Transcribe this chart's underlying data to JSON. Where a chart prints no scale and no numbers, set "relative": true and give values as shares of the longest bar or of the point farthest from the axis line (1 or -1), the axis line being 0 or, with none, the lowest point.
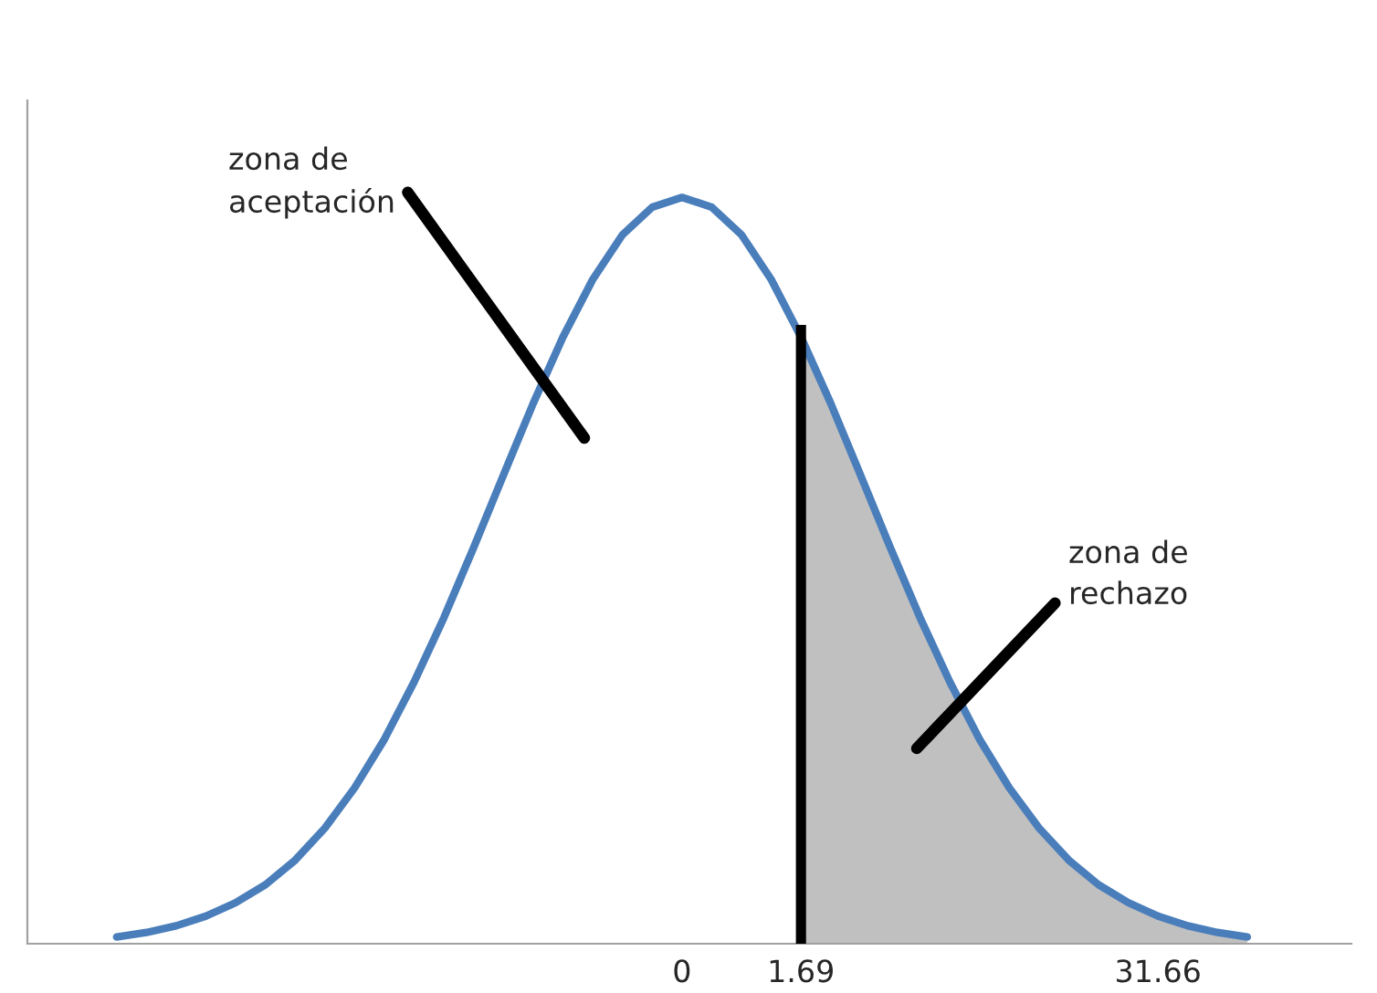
{
  "chart_data": {
    "type": "line",
    "relative": true,
    "grid": false,
    "legend": false,
    "categories": [
      null,
      null,
      null,
      null,
      null,
      null,
      null,
      null,
      null,
      null,
      null,
      null,
      null,
      null,
      null,
      null,
      null,
      null,
      null,
      "0",
      null,
      null,
      null,
      "1.69",
      null,
      null,
      null,
      null,
      null,
      null,
      null,
      null,
      null,
      null,
      null,
      "31.66",
      null,
      null,
      null
    ],
    "series": [
      {
        "type": "line",
        "color": "#4a7ebb",
        "values": [
          0.009,
          0.015,
          0.024,
          0.037,
          0.055,
          0.079,
          0.112,
          0.155,
          0.209,
          0.274,
          0.351,
          0.437,
          0.531,
          0.628,
          0.724,
          0.813,
          0.89,
          0.95,
          0.987,
          1,
          0.987,
          0.95,
          0.89,
          0.813,
          0.724,
          0.628,
          0.531,
          0.437,
          0.351,
          0.274,
          0.209,
          0.155,
          0.112,
          0.079,
          0.055,
          0.037,
          0.024,
          0.015,
          0.009
        ]
      },
      {
        "type": "area",
        "color": "#c0c0c0",
        "values": [
          null,
          null,
          null,
          null,
          null,
          null,
          null,
          null,
          null,
          null,
          null,
          null,
          null,
          null,
          null,
          null,
          null,
          null,
          null,
          null,
          null,
          null,
          null,
          0.813,
          0.724,
          0.628,
          0.531,
          0.437,
          0.351,
          0.274,
          0.209,
          0.155,
          0.112,
          0.079,
          0.055,
          0.037,
          0.024,
          0.015,
          0.009
        ]
      }
    ],
    "ref_lines": [
      {
        "axis": "x",
        "value": "1.69",
        "color": "#000000"
      }
    ],
    "annotations": [
      "zona de\naceptación",
      "zona de\nrechazo"
    ]
  }
}
